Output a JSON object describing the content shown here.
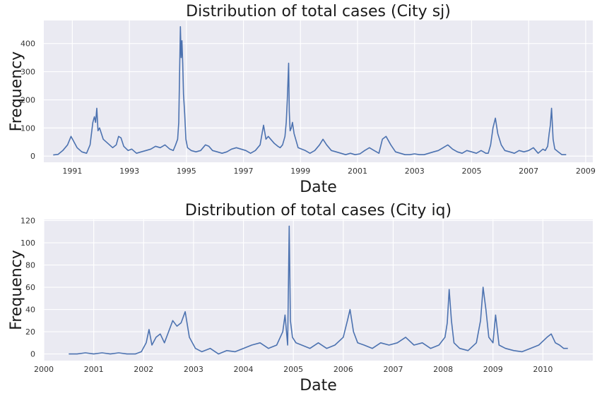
{
  "chart_data": [
    {
      "type": "line",
      "title": "Distribution of total cases (City sj)",
      "xlabel": "Date",
      "ylabel": "Frequency",
      "xlim": [
        "1990-01-01",
        "2009-04-01"
      ],
      "ylim": [
        -22,
        482
      ],
      "yticks": [
        0,
        100,
        200,
        300,
        400
      ],
      "xticks": [
        "1991",
        "1993",
        "1995",
        "1997",
        "1999",
        "2001",
        "2003",
        "2005",
        "2007",
        "2009"
      ],
      "grid": true,
      "background": "#eaeaf2",
      "line_color": "#4c72b0",
      "series": [
        {
          "x": [
            "1990-04-30",
            "1990-07-01",
            "1990-09-01",
            "1990-11-01",
            "1990-12-15",
            "1991-03-01",
            "1991-05-01",
            "1991-07-01",
            "1991-08-15",
            "1991-09-20",
            "1991-10-10",
            "1991-10-25",
            "1991-11-10",
            "1991-11-25",
            "1991-12-15",
            "1992-02-01",
            "1992-04-01",
            "1992-06-01",
            "1992-07-15",
            "1992-08-15",
            "1992-09-15",
            "1992-10-20",
            "1992-12-15",
            "1993-02-01",
            "1993-04-01",
            "1993-06-01",
            "1993-08-01",
            "1993-10-01",
            "1993-12-01",
            "1994-02-01",
            "1994-04-01",
            "1994-06-01",
            "1994-07-15",
            "1994-08-15",
            "1994-09-10",
            "1994-09-25",
            "1994-10-05",
            "1994-10-15",
            "1994-10-25",
            "1994-11-05",
            "1994-11-15",
            "1994-11-25",
            "1994-12-10",
            "1994-12-25",
            "1995-01-15",
            "1995-03-01",
            "1995-05-01",
            "1995-07-01",
            "1995-09-01",
            "1995-10-15",
            "1995-12-01",
            "1996-02-01",
            "1996-04-01",
            "1996-06-01",
            "1996-08-01",
            "1996-10-01",
            "1996-12-01",
            "1997-02-01",
            "1997-04-01",
            "1997-06-01",
            "1997-08-01",
            "1997-09-15",
            "1997-10-15",
            "1997-11-15",
            "1997-12-15",
            "1998-02-01",
            "1998-03-15",
            "1998-04-15",
            "1998-05-15",
            "1998-06-15",
            "1998-07-01",
            "1998-07-15",
            "1998-08-01",
            "1998-08-10",
            "1998-08-20",
            "1998-09-05",
            "1998-09-20",
            "1998-10-10",
            "1998-11-01",
            "1998-12-01",
            "1999-01-15",
            "1999-03-01",
            "1999-05-01",
            "1999-07-01",
            "1999-09-01",
            "1999-10-15",
            "1999-12-01",
            "2000-02-01",
            "2000-04-01",
            "2000-06-01",
            "2000-08-01",
            "2000-10-01",
            "2000-12-01",
            "2001-02-01",
            "2001-04-01",
            "2001-06-01",
            "2001-08-01",
            "2001-10-01",
            "2001-11-15",
            "2002-01-01",
            "2002-03-01",
            "2002-05-01",
            "2002-07-01",
            "2002-09-01",
            "2002-11-01",
            "2003-01-01",
            "2003-03-01",
            "2003-05-01",
            "2003-07-01",
            "2003-09-01",
            "2003-11-01",
            "2004-01-01",
            "2004-03-01",
            "2004-05-01",
            "2004-07-01",
            "2004-09-01",
            "2004-11-01",
            "2005-01-01",
            "2005-03-01",
            "2005-05-01",
            "2005-06-01",
            "2005-07-01",
            "2005-08-01",
            "2005-09-01",
            "2005-10-01",
            "2005-11-01",
            "2005-12-01",
            "2006-01-15",
            "2006-03-01",
            "2006-05-01",
            "2006-07-01",
            "2006-09-01",
            "2006-11-01",
            "2007-01-01",
            "2007-03-01",
            "2007-05-01",
            "2007-07-01",
            "2007-08-01",
            "2007-09-01",
            "2007-09-20",
            "2007-10-05",
            "2007-10-20",
            "2007-11-10",
            "2007-12-01",
            "2008-01-15",
            "2008-03-01",
            "2008-04-25"
          ],
          "y": [
            4,
            6,
            20,
            40,
            70,
            30,
            15,
            10,
            40,
            120,
            140,
            120,
            170,
            90,
            100,
            60,
            45,
            30,
            40,
            70,
            65,
            35,
            20,
            25,
            10,
            15,
            20,
            25,
            35,
            30,
            40,
            25,
            20,
            40,
            60,
            120,
            300,
            460,
            350,
            410,
            330,
            220,
            150,
            60,
            30,
            20,
            15,
            20,
            40,
            35,
            20,
            15,
            10,
            15,
            25,
            30,
            25,
            20,
            10,
            20,
            40,
            110,
            60,
            70,
            60,
            45,
            35,
            30,
            40,
            70,
            120,
            200,
            330,
            160,
            90,
            100,
            120,
            80,
            60,
            30,
            25,
            20,
            10,
            20,
            40,
            60,
            40,
            20,
            15,
            10,
            5,
            10,
            5,
            8,
            20,
            30,
            20,
            10,
            60,
            70,
            40,
            15,
            10,
            5,
            5,
            8,
            5,
            5,
            10,
            15,
            20,
            30,
            40,
            25,
            15,
            10,
            20,
            15,
            10,
            20,
            15,
            10,
            10,
            40,
            100,
            135,
            80,
            40,
            20,
            15,
            10,
            20,
            15,
            20,
            30,
            10,
            25,
            20,
            35,
            80,
            110,
            170,
            60,
            25,
            15,
            5,
            5
          ]
        }
      ]
    },
    {
      "type": "line",
      "title": "Distribution of total cases (City iq)",
      "xlabel": "Date",
      "ylabel": "Frequency",
      "xlim": [
        "2000-01-01",
        "2011-01-01"
      ],
      "ylim": [
        -6,
        121
      ],
      "yticks": [
        0,
        20,
        40,
        60,
        80,
        100,
        120
      ],
      "xticks": [
        "2000",
        "2001",
        "2002",
        "2003",
        "2004",
        "2005",
        "2006",
        "2007",
        "2008",
        "2009",
        "2010"
      ],
      "grid": true,
      "background": "#eaeaf2",
      "line_color": "#4c72b0",
      "series": [
        {
          "x": [
            "2000-07-01",
            "2000-09-01",
            "2000-11-01",
            "2001-01-01",
            "2001-03-01",
            "2001-05-01",
            "2001-07-01",
            "2001-09-01",
            "2001-11-01",
            "2001-12-15",
            "2002-01-20",
            "2002-02-10",
            "2002-03-01",
            "2002-04-01",
            "2002-05-01",
            "2002-06-01",
            "2002-07-01",
            "2002-08-01",
            "2002-09-01",
            "2002-10-01",
            "2002-11-01",
            "2002-12-01",
            "2003-01-15",
            "2003-03-01",
            "2003-05-01",
            "2003-07-01",
            "2003-09-01",
            "2003-11-01",
            "2004-01-01",
            "2004-03-01",
            "2004-05-01",
            "2004-07-01",
            "2004-09-01",
            "2004-10-15",
            "2004-11-01",
            "2004-11-20",
            "2004-12-01",
            "2004-12-10",
            "2004-12-25",
            "2005-01-20",
            "2005-03-01",
            "2005-05-01",
            "2005-07-01",
            "2005-09-01",
            "2005-11-01",
            "2006-01-01",
            "2006-02-01",
            "2006-02-20",
            "2006-03-15",
            "2006-04-15",
            "2006-06-01",
            "2006-08-01",
            "2006-10-01",
            "2006-12-01",
            "2007-02-01",
            "2007-04-01",
            "2007-06-01",
            "2007-08-01",
            "2007-10-01",
            "2007-12-01",
            "2008-01-15",
            "2008-02-01",
            "2008-02-15",
            "2008-03-01",
            "2008-03-20",
            "2008-05-01",
            "2008-07-01",
            "2008-09-01",
            "2008-10-01",
            "2008-10-20",
            "2008-11-10",
            "2008-12-01",
            "2009-01-01",
            "2009-01-20",
            "2009-02-15",
            "2009-04-01",
            "2009-06-01",
            "2009-08-01",
            "2009-10-01",
            "2009-12-01",
            "2010-02-01",
            "2010-03-01",
            "2010-04-01",
            "2010-05-01",
            "2010-06-01",
            "2010-07-01"
          ],
          "y": [
            0,
            0,
            1,
            0,
            1,
            0,
            1,
            0,
            0,
            2,
            10,
            22,
            8,
            15,
            18,
            10,
            20,
            30,
            25,
            28,
            38,
            15,
            5,
            2,
            5,
            0,
            3,
            2,
            5,
            8,
            10,
            5,
            8,
            20,
            35,
            8,
            115,
            30,
            15,
            10,
            8,
            5,
            10,
            5,
            8,
            15,
            30,
            40,
            20,
            10,
            8,
            5,
            10,
            8,
            10,
            15,
            8,
            10,
            5,
            8,
            15,
            28,
            58,
            30,
            10,
            5,
            3,
            10,
            30,
            60,
            40,
            15,
            10,
            35,
            8,
            5,
            3,
            2,
            5,
            8,
            15,
            18,
            10,
            8,
            5,
            5
          ]
        }
      ]
    }
  ]
}
